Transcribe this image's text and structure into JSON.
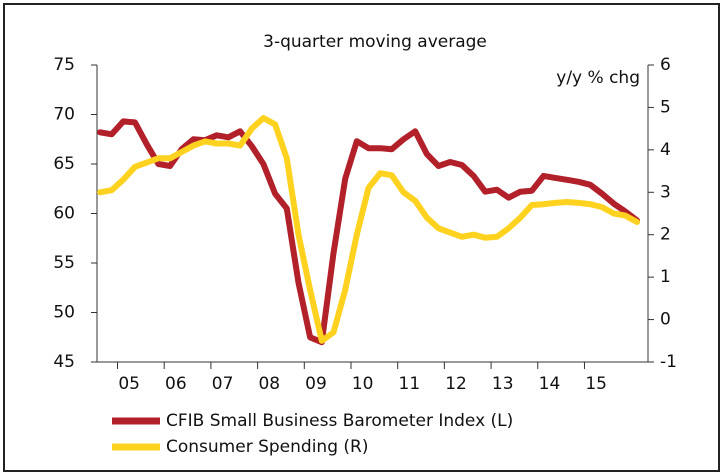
{
  "chart_data": {
    "type": "line",
    "title": "3-quarter moving average",
    "y2_label": "y/y % chg",
    "categories": [
      null,
      null,
      "05",
      null,
      null,
      null,
      "06",
      null,
      null,
      null,
      "07",
      null,
      null,
      null,
      "08",
      null,
      null,
      null,
      "09",
      null,
      null,
      null,
      "10",
      null,
      null,
      null,
      "11",
      null,
      null,
      null,
      "12",
      null,
      null,
      null,
      "13",
      null,
      null,
      null,
      "14",
      null,
      null,
      null,
      "15",
      null,
      null,
      null,
      null
    ],
    "series": [
      {
        "name": "CFIB Small Business Barometer Index (L)",
        "color": "#b2202a",
        "axis": "y",
        "values": [
          68.2,
          68.0,
          69.3,
          69.2,
          67.0,
          65.0,
          64.8,
          66.5,
          67.5,
          67.4,
          67.9,
          67.7,
          68.3,
          66.8,
          65.0,
          62.0,
          60.5,
          53.0,
          47.5,
          47.0,
          56.0,
          63.5,
          67.3,
          66.6,
          66.6,
          66.5,
          67.5,
          68.3,
          66.0,
          64.8,
          65.2,
          64.9,
          63.8,
          62.2,
          62.4,
          61.6,
          62.2,
          62.3,
          63.8,
          63.6,
          63.4,
          63.2,
          62.9,
          62.0,
          61.0,
          60.2,
          59.3
        ]
      },
      {
        "name": "Consumer Spending (R)",
        "color": "#ffd21f",
        "axis": "y2",
        "values": [
          3.0,
          3.05,
          3.3,
          3.6,
          3.7,
          3.8,
          3.8,
          3.95,
          4.1,
          4.2,
          4.15,
          4.15,
          4.1,
          4.5,
          4.75,
          4.6,
          3.8,
          2.0,
          0.7,
          -0.5,
          -0.3,
          0.7,
          2.0,
          3.1,
          3.45,
          3.4,
          3.0,
          2.8,
          2.4,
          2.15,
          2.05,
          1.95,
          2.0,
          1.93,
          1.95,
          2.15,
          2.4,
          2.7,
          2.72,
          2.75,
          2.77,
          2.75,
          2.72,
          2.65,
          2.5,
          2.45,
          2.3
        ]
      }
    ],
    "ylim": [
      45,
      75
    ],
    "yticks": [
      45,
      50,
      55,
      60,
      65,
      70,
      75
    ],
    "y2lim": [
      -1,
      6
    ],
    "y2ticks": [
      -1,
      0,
      1,
      2,
      3,
      4,
      5,
      6
    ],
    "legend": "bottom"
  }
}
